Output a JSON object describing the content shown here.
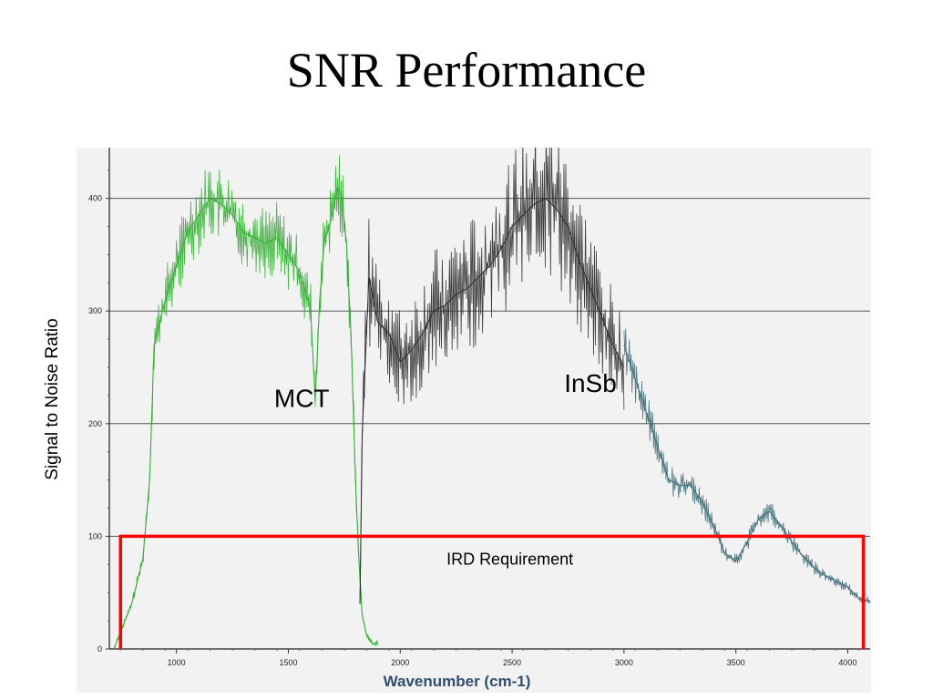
{
  "slide": {
    "title": "SNR Performance"
  },
  "chart_data": {
    "type": "line",
    "title": "SNR Performance",
    "xlabel": "Wavenumber (cm-1)",
    "ylabel": "Signal to Noise Ratio",
    "xlim": [
      700,
      4100
    ],
    "ylim": [
      0,
      445
    ],
    "x_ticks": [
      1000,
      1500,
      2000,
      2500,
      3000,
      3500,
      4000
    ],
    "y_ticks": [
      0,
      100,
      200,
      300,
      400
    ],
    "grid": "horizontal",
    "annotations": [
      {
        "text": "MCT",
        "x": 1560,
        "y": 215
      },
      {
        "text": "InSb",
        "x": 2850,
        "y": 228
      },
      {
        "text": "IRD Requirement",
        "x": 2490,
        "y": 75
      }
    ],
    "requirement": {
      "x_start": 750,
      "x_end": 4070,
      "y": 100,
      "color": "#ff0000"
    },
    "series": [
      {
        "color": "#2fae2f",
        "x": [
          720,
          760,
          800,
          850,
          880,
          900,
          950,
          1000,
          1050,
          1100,
          1150,
          1200,
          1250,
          1300,
          1350,
          1400,
          1450,
          1500,
          1550,
          1600,
          1620,
          1640,
          1660,
          1690,
          1720,
          1740,
          1760,
          1780,
          1800,
          1815,
          1830,
          1850,
          1880,
          1900
        ],
        "y": [
          0,
          20,
          40,
          80,
          150,
          270,
          310,
          340,
          370,
          385,
          400,
          395,
          385,
          370,
          365,
          360,
          365,
          350,
          335,
          300,
          220,
          310,
          360,
          380,
          410,
          400,
          360,
          280,
          150,
          80,
          30,
          12,
          4,
          6
        ]
      },
      {
        "color": "#2b2b2b",
        "x": [
          1820,
          1830,
          1860,
          1900,
          1950,
          2000,
          2050,
          2100,
          2150,
          2200,
          2250,
          2300,
          2350,
          2400,
          2450,
          2500,
          2550,
          2600,
          2650,
          2700,
          2750,
          2800,
          2850,
          2900,
          2950,
          3000
        ],
        "y": [
          40,
          190,
          330,
          290,
          280,
          255,
          265,
          280,
          300,
          305,
          315,
          320,
          330,
          340,
          355,
          375,
          385,
          395,
          400,
          390,
          375,
          345,
          320,
          295,
          270,
          250
        ]
      },
      {
        "color": "#3f6f78",
        "x": [
          3000,
          3050,
          3100,
          3150,
          3200,
          3250,
          3300,
          3350,
          3400,
          3450,
          3500,
          3550,
          3600,
          3650,
          3700,
          3750,
          3800,
          3850,
          3900,
          3950,
          4000,
          4050,
          4100
        ],
        "y": [
          270,
          240,
          210,
          180,
          150,
          145,
          145,
          130,
          110,
          85,
          78,
          95,
          115,
          122,
          110,
          95,
          82,
          72,
          65,
          60,
          55,
          45,
          42
        ]
      }
    ]
  }
}
